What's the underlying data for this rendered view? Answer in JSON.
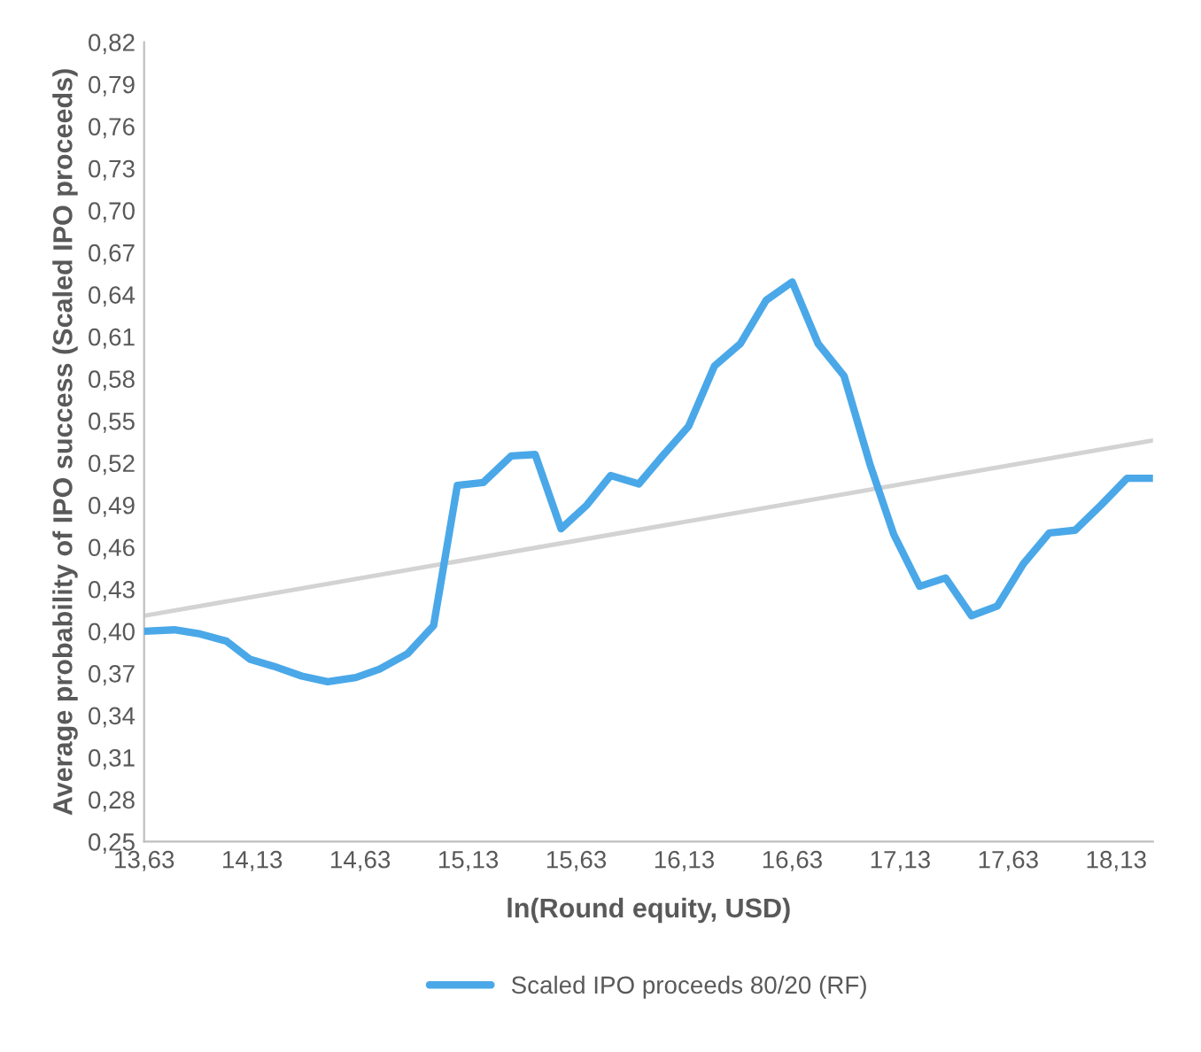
{
  "chart_data": {
    "type": "line",
    "xlabel": "ln(Round equity, USD)",
    "ylabel": "Average probability of IPO success (Scaled IPO proceeds)",
    "xlim": [
      13.63,
      18.3
    ],
    "ylim": [
      0.25,
      0.82
    ],
    "xticks": [
      {
        "value": 13.63,
        "label": "13,63"
      },
      {
        "value": 14.13,
        "label": "14,13"
      },
      {
        "value": 14.63,
        "label": "14,63"
      },
      {
        "value": 15.13,
        "label": "15,13"
      },
      {
        "value": 15.63,
        "label": "15,63"
      },
      {
        "value": 16.13,
        "label": "16,13"
      },
      {
        "value": 16.63,
        "label": "16,63"
      },
      {
        "value": 17.13,
        "label": "17,13"
      },
      {
        "value": 17.63,
        "label": "17,63"
      },
      {
        "value": 18.13,
        "label": "18,13"
      }
    ],
    "yticks": [
      {
        "value": 0.25,
        "label": "0,25"
      },
      {
        "value": 0.28,
        "label": "0,28"
      },
      {
        "value": 0.31,
        "label": "0,31"
      },
      {
        "value": 0.34,
        "label": "0,34"
      },
      {
        "value": 0.37,
        "label": "0,37"
      },
      {
        "value": 0.4,
        "label": "0,40"
      },
      {
        "value": 0.43,
        "label": "0,43"
      },
      {
        "value": 0.46,
        "label": "0,46"
      },
      {
        "value": 0.49,
        "label": "0,49"
      },
      {
        "value": 0.52,
        "label": "0,52"
      },
      {
        "value": 0.55,
        "label": "0,55"
      },
      {
        "value": 0.58,
        "label": "0,58"
      },
      {
        "value": 0.61,
        "label": "0,61"
      },
      {
        "value": 0.64,
        "label": "0,64"
      },
      {
        "value": 0.67,
        "label": "0,67"
      },
      {
        "value": 0.7,
        "label": "0,70"
      },
      {
        "value": 0.73,
        "label": "0,73"
      },
      {
        "value": 0.76,
        "label": "0,76"
      },
      {
        "value": 0.79,
        "label": "0,79"
      },
      {
        "value": 0.82,
        "label": "0,82"
      }
    ],
    "grid": false,
    "legend": "bottom",
    "marker": "none",
    "line_style": "solid",
    "series": [
      {
        "name": "Scaled IPO proceeds 80/20 (RF)",
        "color": "#4aa8e8",
        "x": [
          13.63,
          13.77,
          13.89,
          14.01,
          14.12,
          14.23,
          14.36,
          14.48,
          14.61,
          14.72,
          14.85,
          14.97,
          15.08,
          15.2,
          15.33,
          15.44,
          15.56,
          15.68,
          15.79,
          15.92,
          16.03,
          16.15,
          16.27,
          16.39,
          16.51,
          16.63,
          16.75,
          16.87,
          16.99,
          17.1,
          17.22,
          17.34,
          17.46,
          17.58,
          17.7,
          17.82,
          17.94,
          18.06,
          18.18,
          18.3
        ],
        "values": [
          0.4,
          0.401,
          0.398,
          0.393,
          0.38,
          0.375,
          0.368,
          0.364,
          0.367,
          0.373,
          0.384,
          0.404,
          0.504,
          0.506,
          0.525,
          0.526,
          0.473,
          0.49,
          0.511,
          0.505,
          0.525,
          0.546,
          0.589,
          0.605,
          0.636,
          0.649,
          0.605,
          0.582,
          0.519,
          0.469,
          0.432,
          0.438,
          0.411,
          0.418,
          0.448,
          0.47,
          0.472,
          0.49,
          0.509,
          0.509
        ]
      },
      {
        "type": "line",
        "color": "#d3d3d3",
        "x": [
          13.63,
          18.3
        ],
        "values": [
          0.411,
          0.536
        ]
      }
    ]
  }
}
